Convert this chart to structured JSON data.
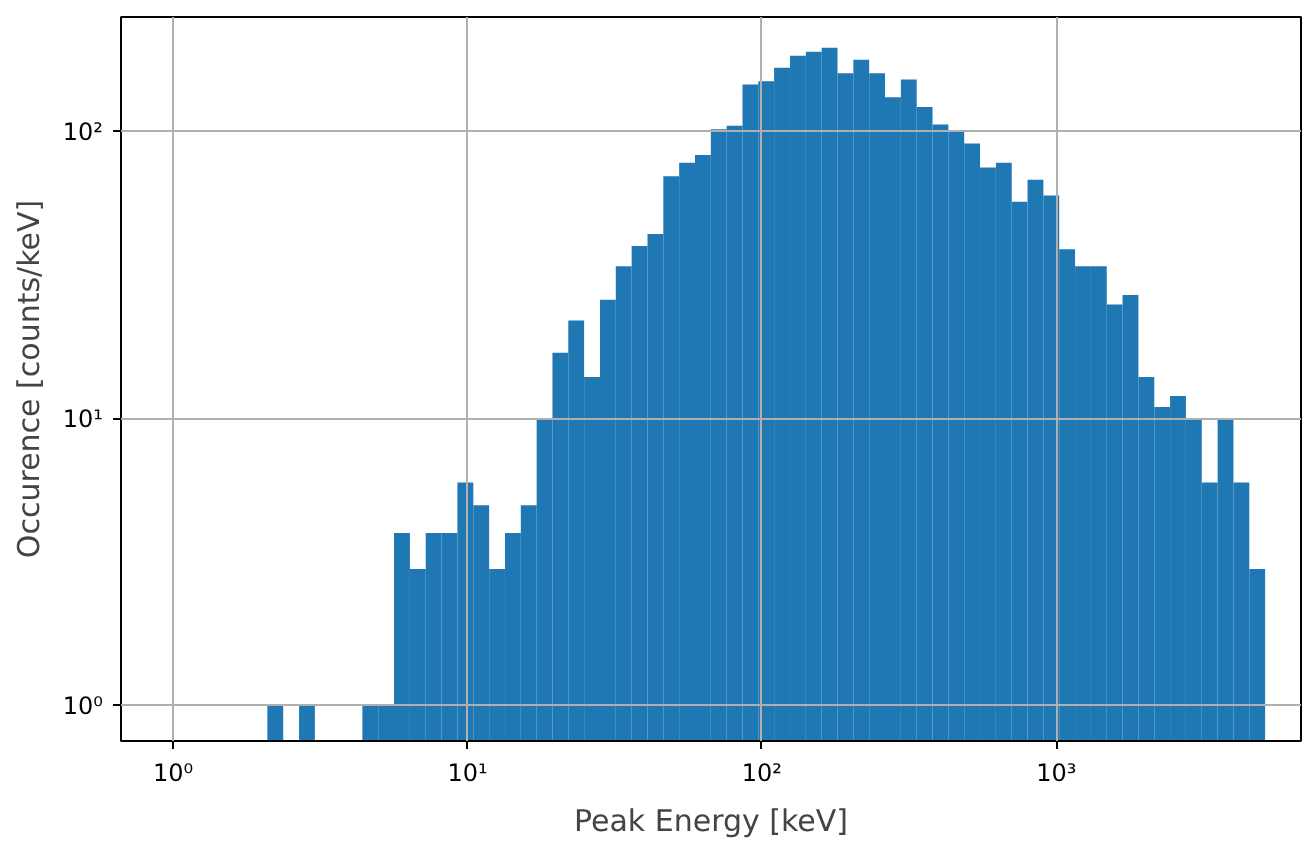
{
  "chart_data": {
    "type": "histogram",
    "xlabel": "Peak Energy [keV]",
    "ylabel": "Occurence [counts/keV]",
    "color": "#1f77b4",
    "bins": [
      2.089,
      2.365,
      2.677,
      3.03,
      3.429,
      3.882,
      4.393,
      4.973,
      5.628,
      6.371,
      7.211,
      8.161,
      9.239,
      10.46,
      11.84,
      13.4,
      15.17,
      17.17,
      19.43,
      21.99,
      24.89,
      28.18,
      31.89,
      36.1,
      40.86,
      46.24,
      52.34,
      59.25,
      67.06,
      75.9,
      85.9,
      97.23,
      110.0,
      124.6,
      141.0,
      159.6,
      180.6,
      204.5,
      231.4,
      261.9,
      296.5,
      335.6,
      379.8,
      429.9,
      486.6,
      550.8,
      623.4,
      705.6,
      798.6,
      903.9,
      1023,
      1158,
      1311,
      1484,
      1679,
      1901,
      2152,
      2435,
      2756,
      3120,
      3532,
      3997,
      4524,
      5121
    ],
    "values": [
      1,
      null,
      1,
      null,
      null,
      null,
      1,
      1,
      4,
      3,
      4,
      4,
      6,
      5,
      3,
      4,
      5,
      10,
      17,
      22,
      14,
      26,
      34,
      40,
      44,
      70,
      78,
      83,
      102,
      105,
      146,
      150,
      167,
      184,
      190,
      196,
      160,
      178,
      160,
      132,
      152,
      122,
      106,
      100,
      91,
      75,
      78,
      57,
      68,
      60,
      39,
      34,
      34,
      25,
      27,
      14,
      11,
      12,
      10,
      6,
      10,
      6,
      3
    ],
    "log": "xy",
    "grid": true,
    "xlim": [
      0.665,
      6780
    ],
    "ylim": [
      0.755,
      251
    ],
    "xticks": [
      {
        "value": 1,
        "label": "10⁰"
      },
      {
        "value": 10,
        "label": "10¹"
      },
      {
        "value": 100,
        "label": "10²"
      },
      {
        "value": 1000,
        "label": "10³"
      }
    ],
    "yticks": [
      {
        "value": 1,
        "label": "10⁰"
      },
      {
        "value": 10,
        "label": "10¹"
      },
      {
        "value": 100,
        "label": "10²"
      }
    ]
  }
}
